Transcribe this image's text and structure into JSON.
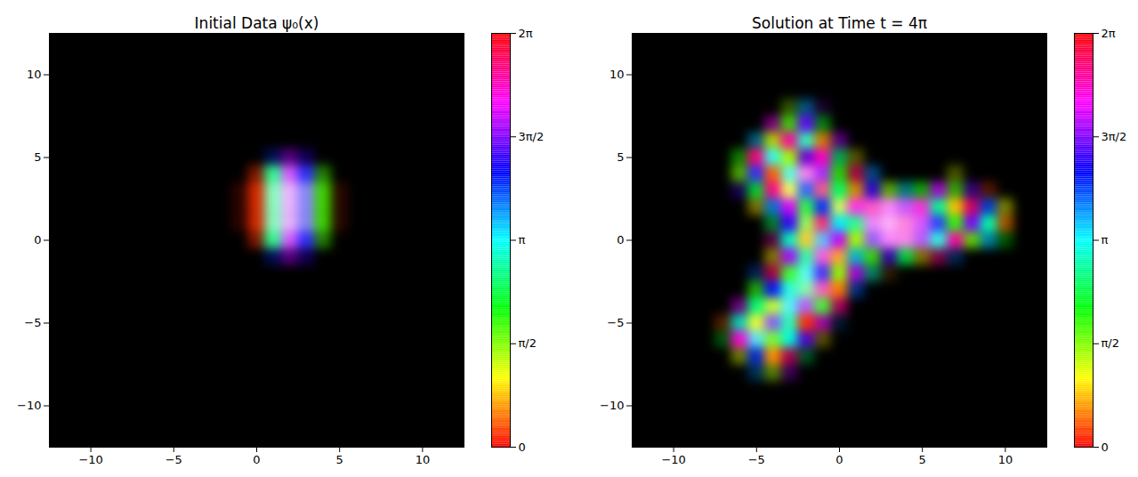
{
  "chart_data": [
    {
      "type": "heatmap",
      "title": "Initial Data ψ₀(x)",
      "xlim": [
        -12.5,
        12.5
      ],
      "ylim": [
        -12.5,
        12.5
      ],
      "xticks": [
        -10,
        -5,
        0,
        5,
        10
      ],
      "yticks": [
        -10,
        -5,
        0,
        5,
        10
      ],
      "x": [
        -1,
        0,
        1,
        2,
        3,
        4,
        5
      ],
      "y": [
        5,
        4,
        3,
        2,
        1,
        0,
        -1
      ],
      "amplitude": [
        [
          0,
          0,
          0.2,
          0.3,
          0.2,
          0,
          0
        ],
        [
          0,
          0.3,
          0.7,
          0.8,
          0.7,
          0.3,
          0
        ],
        [
          0.1,
          0.5,
          0.9,
          1,
          0.9,
          0.5,
          0.1
        ],
        [
          0.1,
          0.5,
          0.9,
          1,
          0.9,
          0.5,
          0.1
        ],
        [
          0.1,
          0.5,
          0.9,
          1,
          0.9,
          0.5,
          0.1
        ],
        [
          0,
          0.3,
          0.7,
          0.8,
          0.7,
          0.3,
          0
        ],
        [
          0,
          0,
          0.2,
          0.3,
          0.2,
          0,
          0
        ]
      ],
      "phase": [
        [
          0,
          0,
          4.0,
          4.9,
          4.4,
          0,
          0
        ],
        [
          0.1,
          0.2,
          2.6,
          5.0,
          4.2,
          1.8,
          0.2
        ],
        [
          0.1,
          0.2,
          2.6,
          5.0,
          4.2,
          1.8,
          0.2
        ],
        [
          0.1,
          0.2,
          2.6,
          5.0,
          4.2,
          1.8,
          0.2
        ],
        [
          0.1,
          0.2,
          2.6,
          5.0,
          4.2,
          1.8,
          0.2
        ],
        [
          0.1,
          0.2,
          2.6,
          5.0,
          4.2,
          1.8,
          0.2
        ],
        [
          0,
          0,
          4.0,
          4.9,
          4.4,
          0,
          0
        ]
      ],
      "colorbar": {
        "range": [
          0,
          6.2832
        ],
        "ticks": [
          0,
          {
            "value": 1.5708,
            "label": "π/2"
          },
          {
            "value": 3.1416,
            "label": "π"
          },
          {
            "value": 4.7124,
            "label": "3π/2"
          },
          {
            "value": 6.2832,
            "label": "2π"
          }
        ]
      }
    },
    {
      "type": "heatmap",
      "title": "Solution at Time t = 4π",
      "xlim": [
        -12.5,
        12.5
      ],
      "ylim": [
        -12.5,
        12.5
      ],
      "xticks": [
        -10,
        -5,
        0,
        5,
        10
      ],
      "yticks": [
        -10,
        -5,
        0,
        5,
        10
      ],
      "x": [
        -7,
        -6,
        -5,
        -4,
        -3,
        -2,
        -1,
        0,
        1,
        2,
        3,
        4,
        5,
        6,
        7,
        8,
        9,
        10
      ],
      "y": [
        8,
        7,
        6,
        5,
        4,
        3,
        2,
        1,
        0,
        -1,
        -2,
        -3,
        -4,
        -5,
        -6,
        -7,
        -8
      ],
      "amplitude": [
        [
          0,
          0,
          0,
          0,
          0.2,
          0.3,
          0.1,
          0,
          0,
          0,
          0,
          0,
          0,
          0,
          0,
          0,
          0,
          0
        ],
        [
          0,
          0,
          0,
          0.3,
          0.5,
          0.6,
          0.3,
          0,
          0,
          0,
          0,
          0,
          0,
          0,
          0,
          0,
          0,
          0
        ],
        [
          0,
          0,
          0.3,
          0.5,
          0.6,
          0.7,
          0.5,
          0.3,
          0,
          0,
          0,
          0,
          0,
          0,
          0,
          0,
          0,
          0
        ],
        [
          0,
          0.3,
          0.6,
          0.7,
          0.6,
          0.5,
          0.6,
          0.4,
          0.2,
          0,
          0,
          0,
          0,
          0,
          0,
          0,
          0,
          0
        ],
        [
          0,
          0.4,
          0.7,
          0.6,
          0.8,
          0.9,
          0.7,
          0.5,
          0.4,
          0.3,
          0,
          0,
          0,
          0,
          0.2,
          0,
          0,
          0
        ],
        [
          0,
          0.2,
          0.5,
          0.6,
          0.8,
          0.7,
          0.8,
          0.6,
          0.5,
          0.5,
          0.4,
          0.3,
          0.4,
          0.5,
          0.4,
          0.3,
          0.2,
          0
        ],
        [
          0,
          0,
          0.3,
          0.5,
          0.6,
          0.7,
          0.6,
          0.8,
          0.7,
          0.8,
          0.9,
          0.8,
          0.7,
          0.6,
          0.6,
          0.5,
          0.5,
          0.3
        ],
        [
          0,
          0,
          0,
          0.3,
          0.6,
          0.8,
          0.7,
          0.6,
          0.7,
          0.9,
          1,
          0.9,
          0.8,
          0.7,
          0.6,
          0.6,
          0.6,
          0.4
        ],
        [
          0,
          0,
          0,
          0.2,
          0.6,
          0.7,
          0.8,
          0.6,
          0.6,
          0.8,
          0.9,
          0.9,
          0.8,
          0.7,
          0.6,
          0.5,
          0.4,
          0.2
        ],
        [
          0,
          0,
          0,
          0.3,
          0.6,
          0.7,
          0.8,
          0.7,
          0.5,
          0.5,
          0.4,
          0.5,
          0.3,
          0.3,
          0.2,
          0,
          0,
          0
        ],
        [
          0,
          0,
          0.2,
          0.4,
          0.7,
          0.8,
          0.7,
          0.6,
          0.5,
          0.3,
          0.1,
          0,
          0,
          0,
          0,
          0,
          0,
          0
        ],
        [
          0,
          0,
          0.4,
          0.6,
          0.7,
          0.9,
          0.8,
          0.6,
          0.3,
          0,
          0,
          0,
          0,
          0,
          0,
          0,
          0,
          0
        ],
        [
          0,
          0.3,
          0.6,
          0.7,
          0.8,
          0.8,
          0.7,
          0.4,
          0,
          0,
          0,
          0,
          0,
          0,
          0,
          0,
          0,
          0
        ],
        [
          0.2,
          0.5,
          0.7,
          0.8,
          0.7,
          0.6,
          0.4,
          0.1,
          0,
          0,
          0,
          0,
          0,
          0,
          0,
          0,
          0,
          0
        ],
        [
          0.2,
          0.6,
          0.8,
          0.7,
          0.6,
          0.5,
          0.2,
          0,
          0,
          0,
          0,
          0,
          0,
          0,
          0,
          0,
          0,
          0
        ],
        [
          0,
          0.3,
          0.5,
          0.6,
          0.4,
          0.2,
          0,
          0,
          0,
          0,
          0,
          0,
          0,
          0,
          0,
          0,
          0,
          0
        ],
        [
          0,
          0,
          0.2,
          0.3,
          0.2,
          0,
          0,
          0,
          0,
          0,
          0,
          0,
          0,
          0,
          0,
          0,
          0,
          0
        ]
      ],
      "phase": [
        [
          0,
          0,
          0,
          0,
          1.5,
          3.5,
          4.8,
          0,
          0,
          0,
          0,
          0,
          0,
          0,
          0,
          0,
          0,
          0
        ],
        [
          0,
          0,
          0,
          5.2,
          1.8,
          4.6,
          2.2,
          0,
          0,
          0,
          0,
          0,
          0,
          0,
          0,
          0,
          0,
          0
        ],
        [
          0,
          0,
          3.4,
          1.2,
          5.6,
          2.8,
          0.6,
          4.9,
          0,
          0,
          0,
          0,
          0,
          0,
          0,
          0,
          0,
          0
        ],
        [
          0,
          2.0,
          5.8,
          3.1,
          1.4,
          4.7,
          5.5,
          2.6,
          1.0,
          0,
          0,
          0,
          0,
          0,
          0,
          0,
          0,
          0
        ],
        [
          0,
          1.6,
          4.2,
          0.4,
          3.0,
          5.4,
          4.8,
          1.9,
          5.9,
          3.6,
          0,
          0,
          0,
          0,
          1.2,
          0,
          0,
          0
        ],
        [
          0,
          4.5,
          2.3,
          5.7,
          1.1,
          3.9,
          6.0,
          2.5,
          0.7,
          4.4,
          1.5,
          3.2,
          2.0,
          5.0,
          1.8,
          4.6,
          0.3,
          0
        ],
        [
          0,
          0,
          0.9,
          3.6,
          5.1,
          2.2,
          4.0,
          1.3,
          5.3,
          5.6,
          5.2,
          4.9,
          5.4,
          2.7,
          0.8,
          5.8,
          3.9,
          1.1
        ],
        [
          0,
          0,
          0,
          2.4,
          4.4,
          1.7,
          5.9,
          3.2,
          2.6,
          5.1,
          5.3,
          5.5,
          5.0,
          4.1,
          1.9,
          4.7,
          2.8,
          0.5
        ],
        [
          0,
          0,
          0,
          5.5,
          2.9,
          0.8,
          3.5,
          5.0,
          1.4,
          4.6,
          5.2,
          5.4,
          4.8,
          3.0,
          5.6,
          1.6,
          3.4,
          2.1
        ],
        [
          0,
          0,
          0,
          1.0,
          4.9,
          2.7,
          5.4,
          0.6,
          3.3,
          1.8,
          4.5,
          2.4,
          0.9,
          5.7,
          3.7,
          0,
          0,
          0
        ],
        [
          0,
          0,
          3.8,
          5.9,
          2.0,
          3.1,
          4.3,
          1.5,
          5.0,
          2.9,
          0.7,
          0,
          0,
          0,
          0,
          0,
          0,
          0
        ],
        [
          0,
          0,
          1.9,
          4.1,
          3.0,
          2.4,
          5.6,
          0.5,
          3.8,
          0,
          0,
          0,
          0,
          0,
          0,
          0,
          0,
          0
        ],
        [
          0,
          5.1,
          2.6,
          1.3,
          3.2,
          4.8,
          2.0,
          5.7,
          0,
          0,
          0,
          0,
          0,
          0,
          0,
          0,
          0,
          0
        ],
        [
          0.4,
          3.0,
          1.1,
          4.5,
          2.8,
          0.2,
          5.2,
          3.6,
          0,
          0,
          0,
          0,
          0,
          0,
          0,
          0,
          0,
          0
        ],
        [
          2.2,
          5.4,
          3.3,
          1.7,
          3.0,
          4.6,
          1.0,
          0,
          0,
          0,
          0,
          0,
          0,
          0,
          0,
          0,
          0,
          0
        ],
        [
          0,
          1.2,
          4.0,
          0.6,
          5.8,
          2.5,
          0,
          0,
          0,
          0,
          0,
          0,
          0,
          0,
          0,
          0,
          0,
          0
        ],
        [
          0,
          0,
          3.6,
          1.4,
          4.9,
          0,
          0,
          0,
          0,
          0,
          0,
          0,
          0,
          0,
          0,
          0,
          0,
          0
        ]
      ],
      "colorbar": {
        "range": [
          0,
          6.2832
        ],
        "ticks": [
          0,
          {
            "value": 1.5708,
            "label": "π/2"
          },
          {
            "value": 3.1416,
            "label": "π"
          },
          {
            "value": 4.7124,
            "label": "3π/2"
          },
          {
            "value": 6.2832,
            "label": "2π"
          }
        ]
      }
    }
  ]
}
